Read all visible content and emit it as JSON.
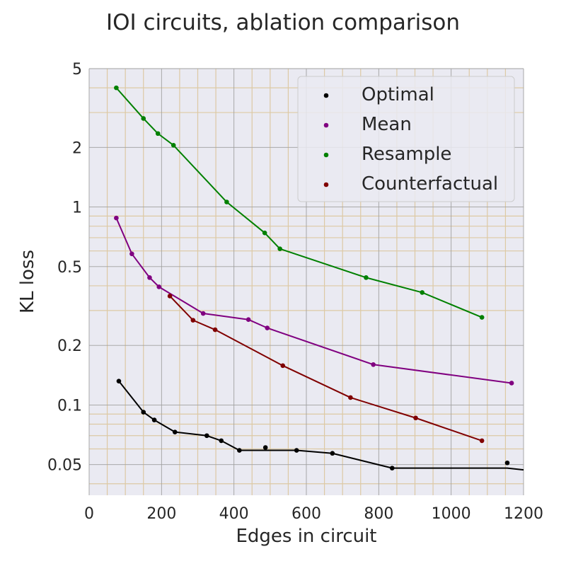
{
  "chart_data": {
    "type": "line",
    "title": "IOI circuits, ablation comparison",
    "xlabel": "Edges in circuit",
    "ylabel": "KL loss",
    "xlim": [
      0,
      1200
    ],
    "ylim": [
      0.035,
      5
    ],
    "yscale": "log",
    "xticks": [
      0,
      200,
      400,
      600,
      800,
      1000,
      1200
    ],
    "yticks": [
      {
        "value": 0.05,
        "label": "0.05"
      },
      {
        "value": 0.1,
        "label": "0.1"
      },
      {
        "value": 0.2,
        "label": "0.2"
      },
      {
        "value": 0.5,
        "label": "0.5"
      },
      {
        "value": 1,
        "label": "1"
      },
      {
        "value": 2,
        "label": "2"
      },
      {
        "value": 5,
        "label": "5"
      }
    ],
    "grid": true,
    "legend_position": "top-right",
    "series": [
      {
        "name": "Optimal",
        "color": "#000000",
        "points": [
          [
            82,
            0.132
          ],
          [
            150,
            0.092
          ],
          [
            180,
            0.084
          ],
          [
            237,
            0.073
          ],
          [
            325,
            0.07
          ],
          [
            365,
            0.066
          ],
          [
            415,
            0.059
          ],
          [
            487,
            0.061
          ],
          [
            573,
            0.059
          ],
          [
            672,
            0.057
          ],
          [
            837,
            0.048
          ],
          [
            1155,
            0.051
          ]
        ],
        "line": [
          [
            82,
            0.132
          ],
          [
            150,
            0.092
          ],
          [
            180,
            0.084
          ],
          [
            237,
            0.073
          ],
          [
            325,
            0.07
          ],
          [
            365,
            0.066
          ],
          [
            415,
            0.059
          ],
          [
            573,
            0.059
          ],
          [
            672,
            0.057
          ],
          [
            837,
            0.048
          ],
          [
            1155,
            0.048
          ],
          [
            1200,
            0.047
          ]
        ]
      },
      {
        "name": "Mean",
        "color": "#800080",
        "points": [
          [
            75,
            0.88
          ],
          [
            118,
            0.58
          ],
          [
            167,
            0.44
          ],
          [
            193,
            0.395
          ],
          [
            315,
            0.29
          ],
          [
            440,
            0.27
          ],
          [
            492,
            0.245
          ],
          [
            785,
            0.16
          ],
          [
            1167,
            0.129
          ]
        ],
        "line": [
          [
            75,
            0.88
          ],
          [
            118,
            0.58
          ],
          [
            167,
            0.44
          ],
          [
            193,
            0.395
          ],
          [
            315,
            0.29
          ],
          [
            440,
            0.27
          ],
          [
            492,
            0.245
          ],
          [
            785,
            0.16
          ],
          [
            1167,
            0.129
          ]
        ]
      },
      {
        "name": "Resample",
        "color": "#008000",
        "points": [
          [
            75,
            4.0
          ],
          [
            150,
            2.8
          ],
          [
            190,
            2.35
          ],
          [
            233,
            2.05
          ],
          [
            380,
            1.06
          ],
          [
            485,
            0.74
          ],
          [
            527,
            0.615
          ],
          [
            765,
            0.44
          ],
          [
            920,
            0.37
          ],
          [
            1085,
            0.277
          ]
        ],
        "line": [
          [
            75,
            4.0
          ],
          [
            150,
            2.8
          ],
          [
            190,
            2.35
          ],
          [
            233,
            2.05
          ],
          [
            380,
            1.06
          ],
          [
            485,
            0.74
          ],
          [
            527,
            0.615
          ],
          [
            765,
            0.44
          ],
          [
            920,
            0.37
          ],
          [
            1085,
            0.277
          ]
        ]
      },
      {
        "name": "Counterfactual",
        "color": "#800000",
        "points": [
          [
            223,
            0.355
          ],
          [
            287,
            0.268
          ],
          [
            348,
            0.24
          ],
          [
            535,
            0.158
          ],
          [
            722,
            0.109
          ],
          [
            902,
            0.086
          ],
          [
            1085,
            0.066
          ]
        ],
        "line": [
          [
            223,
            0.355
          ],
          [
            287,
            0.268
          ],
          [
            348,
            0.24
          ],
          [
            535,
            0.158
          ],
          [
            722,
            0.109
          ],
          [
            902,
            0.086
          ],
          [
            1085,
            0.066
          ]
        ]
      }
    ]
  }
}
